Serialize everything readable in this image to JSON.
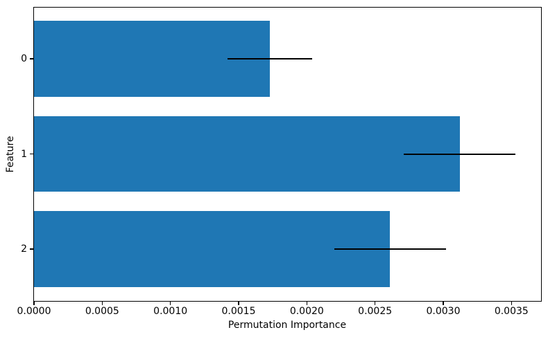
{
  "figure": {
    "background": "#ffffff",
    "bar_color": "#1f77b4",
    "error_bar_color": "#000000",
    "spine_color": "#000000",
    "text_color": "#000000"
  },
  "chart_data": {
    "type": "bar",
    "orientation": "horizontal",
    "title": "",
    "xlabel": "Permutation Importance",
    "ylabel": "Feature",
    "categories": [
      "0",
      "1",
      "2"
    ],
    "series": [
      {
        "name": "permutation_importance",
        "values": [
          0.00173,
          0.00312,
          0.00261
        ],
        "errors": [
          0.00031,
          0.00041,
          0.00041
        ]
      }
    ],
    "xlim": [
      0,
      0.003717
    ],
    "ylim": [
      -0.54,
      2.54
    ],
    "y_inverted": true,
    "bar_height_units": 0.8,
    "x_ticks": [
      0.0,
      0.0005,
      0.001,
      0.0015,
      0.002,
      0.0025,
      0.003,
      0.0035
    ],
    "x_tick_labels": [
      "0.0000",
      "0.0005",
      "0.0010",
      "0.0015",
      "0.0020",
      "0.0025",
      "0.0030",
      "0.0035"
    ],
    "grid": false,
    "legend_position": "none"
  }
}
